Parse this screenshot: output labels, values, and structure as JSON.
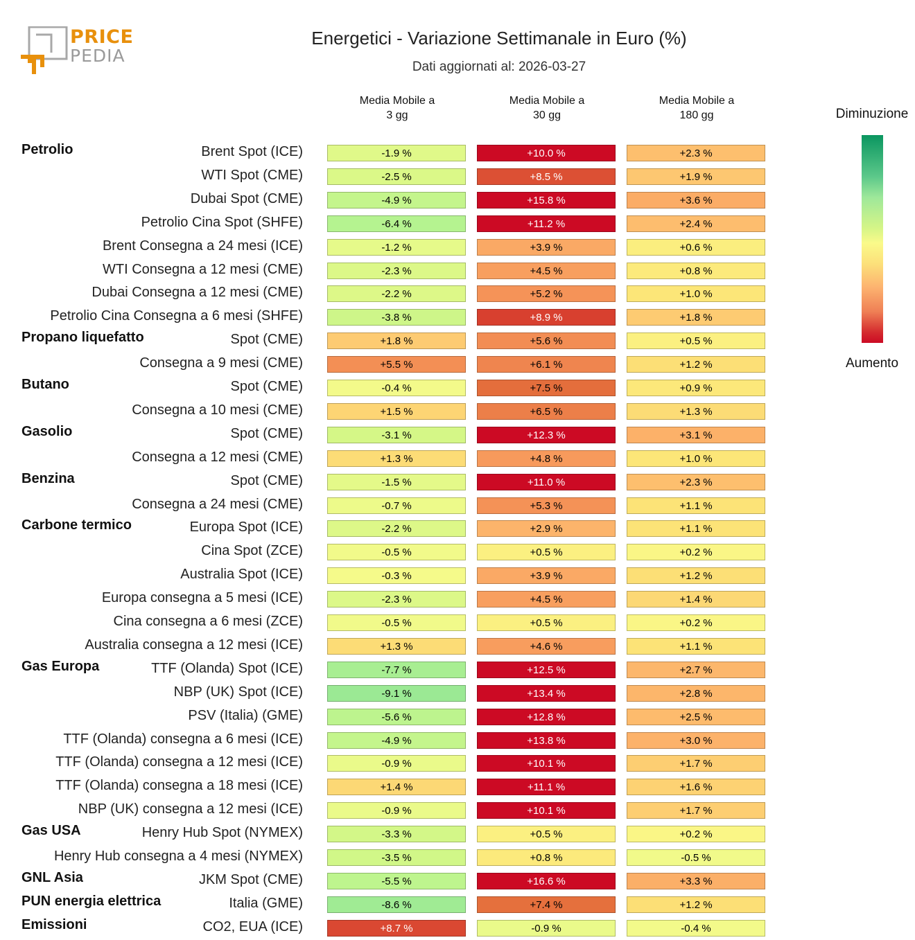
{
  "logo": {
    "line1": "PRICE",
    "line2": "PEDIA",
    "accent": "#e8900c",
    "gray": "#9a9a9a"
  },
  "header": {
    "title": "Energetici - Variazione Settimanale in Euro (%)",
    "subtitle": "Dati aggiornati al: 2026-03-27"
  },
  "legend": {
    "top": "Diminuzione",
    "bottom": "Aumento"
  },
  "chart_data": {
    "type": "heatmap",
    "title": "Energetici - Variazione Settimanale in Euro (%)",
    "subtitle": "Dati aggiornati al: 2026-03-27",
    "columns": [
      "Media Mobile a\n3 gg",
      "Media Mobile a\n30 gg",
      "Media Mobile a\n180 gg"
    ],
    "column_lines": [
      [
        "Media Mobile a",
        "3 gg"
      ],
      [
        "Media Mobile a",
        "30 gg"
      ],
      [
        "Media Mobile a",
        "180 gg"
      ]
    ],
    "unit": "%",
    "colorscale": {
      "low_label": "Diminuzione",
      "high_label": "Aumento",
      "low_color": "#0a9660",
      "mid_color": "#fafa8a",
      "high_color": "#cc0a24"
    },
    "rows": [
      {
        "group": "Petrolio",
        "label": "Brent Spot (ICE)",
        "values": [
          -1.9,
          10.0,
          2.3
        ]
      },
      {
        "group": "",
        "label": "WTI Spot (CME)",
        "values": [
          -2.5,
          8.5,
          1.9
        ]
      },
      {
        "group": "",
        "label": "Dubai Spot (CME)",
        "values": [
          -4.9,
          15.8,
          3.6
        ]
      },
      {
        "group": "",
        "label": "Petrolio Cina Spot (SHFE)",
        "values": [
          -6.4,
          11.2,
          2.4
        ]
      },
      {
        "group": "",
        "label": "Brent Consegna a 24 mesi (ICE)",
        "values": [
          -1.2,
          3.9,
          0.6
        ]
      },
      {
        "group": "",
        "label": "WTI Consegna a 12 mesi (CME)",
        "values": [
          -2.3,
          4.5,
          0.8
        ]
      },
      {
        "group": "",
        "label": "Dubai Consegna a 12 mesi (CME)",
        "values": [
          -2.2,
          5.2,
          1.0
        ]
      },
      {
        "group": "",
        "label": "Petrolio Cina Consegna a 6 mesi (SHFE)",
        "values": [
          -3.8,
          8.9,
          1.8
        ]
      },
      {
        "group": "Propano liquefatto",
        "label": "Spot (CME)",
        "values": [
          1.8,
          5.6,
          0.5
        ]
      },
      {
        "group": "",
        "label": "Consegna a 9 mesi (CME)",
        "values": [
          5.5,
          6.1,
          1.2
        ]
      },
      {
        "group": "Butano",
        "label": "Spot (CME)",
        "values": [
          -0.4,
          7.5,
          0.9
        ]
      },
      {
        "group": "",
        "label": "Consegna a 10 mesi (CME)",
        "values": [
          1.5,
          6.5,
          1.3
        ]
      },
      {
        "group": "Gasolio",
        "label": "Spot (CME)",
        "values": [
          -3.1,
          12.3,
          3.1
        ]
      },
      {
        "group": "",
        "label": "Consegna a 12 mesi (CME)",
        "values": [
          1.3,
          4.8,
          1.0
        ]
      },
      {
        "group": "Benzina",
        "label": "Spot (CME)",
        "values": [
          -1.5,
          11.0,
          2.3
        ]
      },
      {
        "group": "",
        "label": "Consegna a 24 mesi (CME)",
        "values": [
          -0.7,
          5.3,
          1.1
        ]
      },
      {
        "group": "Carbone termico",
        "label": "Europa Spot (ICE)",
        "values": [
          -2.2,
          2.9,
          1.1
        ]
      },
      {
        "group": "",
        "label": "Cina Spot (ZCE)",
        "values": [
          -0.5,
          0.5,
          0.2
        ]
      },
      {
        "group": "",
        "label": "Australia Spot (ICE)",
        "values": [
          -0.3,
          3.9,
          1.2
        ]
      },
      {
        "group": "",
        "label": "Europa consegna a 5 mesi (ICE)",
        "values": [
          -2.3,
          4.5,
          1.4
        ]
      },
      {
        "group": "",
        "label": "Cina consegna a 6 mesi (ZCE)",
        "values": [
          -0.5,
          0.5,
          0.2
        ]
      },
      {
        "group": "",
        "label": "Australia consegna a 12 mesi (ICE)",
        "values": [
          1.3,
          4.6,
          1.1
        ]
      },
      {
        "group": "Gas Europa",
        "label": "TTF (Olanda) Spot (ICE)",
        "values": [
          -7.7,
          12.5,
          2.7
        ]
      },
      {
        "group": "",
        "label": "NBP (UK) Spot (ICE)",
        "values": [
          -9.1,
          13.4,
          2.8
        ]
      },
      {
        "group": "",
        "label": "PSV (Italia) (GME)",
        "values": [
          -5.6,
          12.8,
          2.5
        ]
      },
      {
        "group": "",
        "label": "TTF (Olanda) consegna a 6 mesi (ICE)",
        "values": [
          -4.9,
          13.8,
          3.0
        ]
      },
      {
        "group": "",
        "label": "TTF (Olanda) consegna a 12 mesi (ICE)",
        "values": [
          -0.9,
          10.1,
          1.7
        ]
      },
      {
        "group": "",
        "label": "TTF (Olanda) consegna a 18 mesi (ICE)",
        "values": [
          1.4,
          11.1,
          1.6
        ]
      },
      {
        "group": "",
        "label": "NBP (UK) consegna a 12 mesi (ICE)",
        "values": [
          -0.9,
          10.1,
          1.7
        ]
      },
      {
        "group": "Gas USA",
        "label": "Henry Hub Spot (NYMEX)",
        "values": [
          -3.3,
          0.5,
          0.2
        ]
      },
      {
        "group": "",
        "label": "Henry Hub consegna a 4 mesi (NYMEX)",
        "values": [
          -3.5,
          0.8,
          -0.5
        ]
      },
      {
        "group": "GNL Asia",
        "label": "JKM Spot (CME)",
        "values": [
          -5.5,
          16.6,
          3.3
        ]
      },
      {
        "group": "PUN energia elettrica",
        "label": "Italia (GME)",
        "values": [
          -8.6,
          7.4,
          1.2
        ]
      },
      {
        "group": "Emissioni",
        "label": "CO2, EUA (ICE)",
        "values": [
          8.7,
          -0.9,
          -0.4
        ]
      }
    ]
  }
}
